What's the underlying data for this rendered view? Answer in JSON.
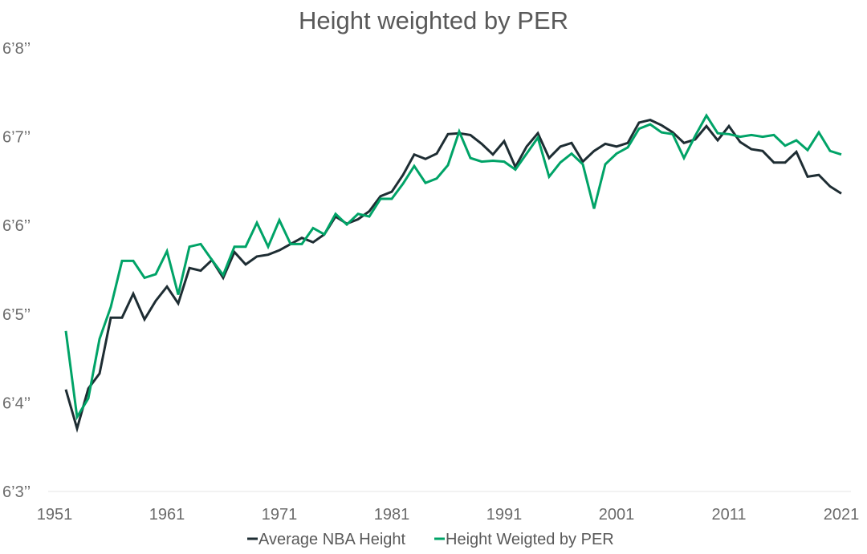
{
  "chart_data": {
    "type": "line",
    "title": "Height weighted by PER",
    "xlabel": "",
    "ylabel": "",
    "xlim": [
      1951,
      2021
    ],
    "ylim": [
      75,
      80
    ],
    "xticks": [
      1951,
      1961,
      1971,
      1981,
      1991,
      2001,
      2011,
      2021
    ],
    "xtick_labels": [
      "1951",
      "1961",
      "1971",
      "1981",
      "1991",
      "2001",
      "2011",
      "2021"
    ],
    "yticks": [
      75,
      76,
      77,
      78,
      79,
      80
    ],
    "ytick_labels": [
      "6’3’’",
      "6’4’’",
      "6’5’’",
      "6’6’’",
      "6’7’’",
      "6’8’’"
    ],
    "grid": false,
    "legend_placement": "bottom",
    "x": [
      1952,
      1953,
      1954,
      1955,
      1956,
      1957,
      1958,
      1959,
      1960,
      1961,
      1962,
      1963,
      1964,
      1965,
      1966,
      1967,
      1968,
      1969,
      1970,
      1971,
      1972,
      1973,
      1974,
      1975,
      1976,
      1977,
      1978,
      1979,
      1980,
      1981,
      1982,
      1983,
      1984,
      1985,
      1986,
      1987,
      1988,
      1989,
      1990,
      1991,
      1992,
      1993,
      1994,
      1995,
      1996,
      1997,
      1998,
      1999,
      2000,
      2001,
      2002,
      2003,
      2004,
      2005,
      2006,
      2007,
      2008,
      2009,
      2010,
      2011,
      2012,
      2013,
      2014,
      2015,
      2016,
      2017,
      2018,
      2019,
      2020,
      2021
    ],
    "series": [
      {
        "name": "Average NBA Height",
        "color": "#1e2d33",
        "values": [
          76.15,
          75.71,
          76.16,
          76.33,
          76.96,
          76.96,
          77.23,
          76.94,
          77.15,
          77.31,
          77.12,
          77.52,
          77.49,
          77.61,
          77.41,
          77.7,
          77.56,
          77.65,
          77.67,
          77.72,
          77.79,
          77.86,
          77.81,
          77.9,
          78.1,
          78.02,
          78.07,
          78.16,
          78.33,
          78.38,
          78.57,
          78.8,
          78.75,
          78.81,
          79.03,
          79.04,
          79.02,
          78.92,
          78.8,
          78.95,
          78.66,
          78.89,
          79.04,
          78.76,
          78.89,
          78.93,
          78.72,
          78.84,
          78.92,
          78.89,
          78.93,
          79.16,
          79.19,
          79.13,
          79.05,
          78.93,
          78.97,
          79.12,
          78.96,
          79.12,
          78.94,
          78.86,
          78.84,
          78.71,
          78.71,
          78.83,
          78.55,
          78.57,
          78.44,
          78.36
        ]
      },
      {
        "name": "Height Weigted by PER",
        "color": "#00a367",
        "values": [
          76.81,
          75.84,
          76.05,
          76.72,
          77.08,
          77.6,
          77.6,
          77.41,
          77.45,
          77.71,
          77.22,
          77.76,
          77.79,
          77.61,
          77.44,
          77.76,
          77.76,
          78.03,
          77.76,
          78.06,
          77.79,
          77.79,
          77.97,
          77.9,
          78.13,
          78.01,
          78.13,
          78.1,
          78.3,
          78.3,
          78.47,
          78.67,
          78.48,
          78.53,
          78.68,
          79.06,
          78.76,
          78.72,
          78.73,
          78.72,
          78.63,
          78.81,
          78.99,
          78.55,
          78.71,
          78.81,
          78.69,
          78.19,
          78.69,
          78.81,
          78.88,
          79.09,
          79.14,
          79.05,
          79.03,
          78.76,
          79.01,
          79.24,
          79.04,
          79.03,
          79.0,
          79.02,
          79.0,
          79.02,
          78.9,
          78.96,
          78.85,
          79.05,
          78.84,
          78.8
        ]
      }
    ]
  }
}
